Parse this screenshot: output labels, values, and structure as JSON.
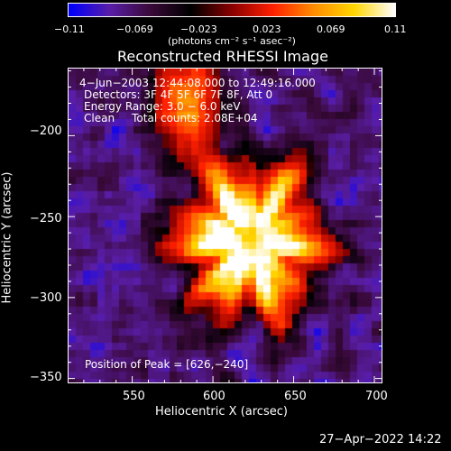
{
  "colorbar": {
    "ticks": [
      "−0.11",
      "−0.069",
      "−0.023",
      "0.023",
      "0.069",
      "0.11"
    ],
    "unit": "(photons cm⁻² s⁻¹ asec⁻²)",
    "range": [
      -0.11,
      0.11
    ]
  },
  "title": "Reconstructed RHESSI Image",
  "annotations": {
    "time": "4−Jun−2003 12:44:08.000 to 12:49:16.000",
    "detectors": "Detectors: 3F 4F 5F 6F 7F 8F, Att 0",
    "energy": "Energy Range: 3.0 − 6.0 keV",
    "clean": "Clean     Total counts: 2.08E+04",
    "peak": "Position of Peak = [626,−240]"
  },
  "axes": {
    "xlabel": "Heliocentric X (arcsec)",
    "ylabel": "Heliocentric Y (arcsec)",
    "xticks": [
      "550",
      "600",
      "650",
      "700"
    ],
    "yticks": [
      "−200",
      "−250",
      "−300",
      "−350"
    ],
    "xrange": [
      510,
      705
    ],
    "yrange": [
      -353,
      -158
    ]
  },
  "footer": {
    "timestamp": "27−Apr−2022 14:22"
  },
  "image": {
    "peak_x": 626,
    "peak_y": -240,
    "colormap": [
      "#0000ff",
      "#5a1ea8",
      "#3a0a3a",
      "#000000",
      "#8a0000",
      "#ff2000",
      "#ff8c00",
      "#ffd700",
      "#ffffff"
    ]
  }
}
